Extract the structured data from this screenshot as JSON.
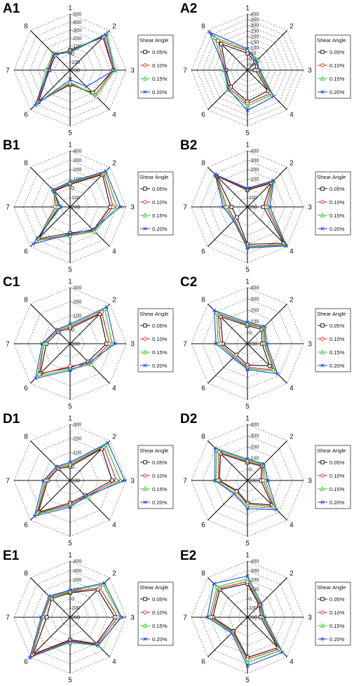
{
  "figure": {
    "legend_title": "Shear Angle",
    "series_names": [
      "0.05%",
      "0.10%",
      "0.15%",
      "0.20%"
    ],
    "series_colors": [
      "#111111",
      "#e52222",
      "#22cc22",
      "#2244ee"
    ],
    "series_markers": [
      "square",
      "circle",
      "triangle",
      "x"
    ]
  },
  "chart_data": [
    {
      "panel": "A1",
      "type": "radar",
      "axes": [
        "1",
        "2",
        "3",
        "4",
        "5",
        "6",
        "7",
        "8"
      ],
      "ticks": [
        "-500",
        "-400",
        "-300",
        "-200",
        "-100",
        "0",
        "100",
        "200"
      ],
      "range": [
        -500,
        200
      ],
      "series": [
        {
          "name": "0.05%",
          "values": [
            -50,
            -380,
            -340,
            -200,
            20,
            -360,
            -60,
            -60
          ]
        },
        {
          "name": "0.10%",
          "values": [
            -40,
            -400,
            -340,
            -240,
            30,
            -380,
            -80,
            -90
          ]
        },
        {
          "name": "0.15%",
          "values": [
            -30,
            -450,
            -360,
            -260,
            50,
            -400,
            -100,
            -100
          ]
        },
        {
          "name": "0.20%",
          "values": [
            -20,
            -430,
            -350,
            -90,
            80,
            -420,
            -70,
            -80
          ]
        }
      ]
    },
    {
      "panel": "A2",
      "type": "radar",
      "axes": [
        "1",
        "2",
        "3",
        "4",
        "5",
        "6",
        "7",
        "8"
      ],
      "ticks": [
        "-400",
        "-350",
        "-300",
        "-250",
        "-200",
        "-150",
        "-100",
        "-50",
        "0",
        "50",
        "100"
      ],
      "range": [
        -400,
        100
      ],
      "series": [
        {
          "name": "0.05%",
          "values": [
            -50,
            0,
            30,
            -160,
            -180,
            -110,
            -90,
            -230
          ]
        },
        {
          "name": "0.10%",
          "values": [
            -70,
            -20,
            10,
            -190,
            -200,
            -130,
            -100,
            -270
          ]
        },
        {
          "name": "0.15%",
          "values": [
            -80,
            -30,
            0,
            -210,
            -220,
            -150,
            -110,
            -310
          ]
        },
        {
          "name": "0.20%",
          "values": [
            -90,
            -10,
            -10,
            -230,
            -260,
            -140,
            -100,
            -380
          ]
        }
      ]
    },
    {
      "panel": "B1",
      "type": "radar",
      "axes": [
        "1",
        "2",
        "3",
        "4",
        "5",
        "6",
        "7",
        "8"
      ],
      "ticks": [
        "-400",
        "-300",
        "-200",
        "-100",
        "0",
        "100",
        "200"
      ],
      "range": [
        -400,
        200
      ],
      "series": [
        {
          "name": "0.05%",
          "values": [
            -40,
            -290,
            -230,
            -150,
            -80,
            -280,
            80,
            -40
          ]
        },
        {
          "name": "0.10%",
          "values": [
            -50,
            -310,
            -260,
            -160,
            -100,
            -300,
            40,
            -50
          ]
        },
        {
          "name": "0.15%",
          "values": [
            -60,
            -330,
            -300,
            -170,
            -110,
            -310,
            60,
            -60
          ]
        },
        {
          "name": "0.20%",
          "values": [
            -70,
            -340,
            -340,
            -140,
            -90,
            -360,
            100,
            -60
          ]
        }
      ]
    },
    {
      "panel": "B2",
      "type": "radar",
      "axes": [
        "1",
        "2",
        "3",
        "4",
        "5",
        "6",
        "7",
        "8"
      ],
      "ticks": [
        "-400",
        "-300",
        "-200",
        "-100",
        "0",
        "100",
        "200"
      ],
      "range": [
        -400,
        200
      ],
      "series": [
        {
          "name": "0.05%",
          "values": [
            20,
            -160,
            30,
            -350,
            -200,
            40,
            30,
            -270
          ]
        },
        {
          "name": "0.10%",
          "values": [
            10,
            -180,
            0,
            -370,
            -220,
            10,
            -20,
            -280
          ]
        },
        {
          "name": "0.15%",
          "values": [
            0,
            -190,
            -20,
            -380,
            -230,
            0,
            -40,
            -290
          ]
        },
        {
          "name": "0.20%",
          "values": [
            0,
            -200,
            -40,
            -390,
            -240,
            -10,
            -60,
            -290
          ]
        }
      ]
    },
    {
      "panel": "C1",
      "type": "radar",
      "axes": [
        "1",
        "2",
        "3",
        "4",
        "5",
        "6",
        "7",
        "8"
      ],
      "ticks": [
        "-300",
        "-200",
        "-100",
        "0",
        "100"
      ],
      "range": [
        -300,
        100
      ],
      "series": [
        {
          "name": "0.05%",
          "values": [
            -10,
            -200,
            -160,
            -80,
            -70,
            -200,
            -70,
            -20
          ]
        },
        {
          "name": "0.10%",
          "values": [
            -20,
            -220,
            -180,
            -100,
            -60,
            -210,
            -90,
            -30
          ]
        },
        {
          "name": "0.15%",
          "values": [
            -30,
            -250,
            -200,
            -110,
            -80,
            -230,
            -90,
            -40
          ]
        },
        {
          "name": "0.20%",
          "values": [
            -40,
            -270,
            -220,
            -90,
            -90,
            -250,
            -100,
            -40
          ]
        }
      ]
    },
    {
      "panel": "C2",
      "type": "radar",
      "axes": [
        "1",
        "2",
        "3",
        "4",
        "5",
        "6",
        "7",
        "8"
      ],
      "ticks": [
        "-400",
        "-300",
        "-200",
        "-100",
        "0",
        "100"
      ],
      "range": [
        -400,
        100
      ],
      "series": [
        {
          "name": "0.05%",
          "values": [
            -60,
            -80,
            -30,
            -180,
            -90,
            -40,
            -120,
            -240
          ]
        },
        {
          "name": "0.10%",
          "values": [
            -70,
            -100,
            -50,
            -230,
            -110,
            -60,
            -140,
            -270
          ]
        },
        {
          "name": "0.15%",
          "values": [
            -80,
            -110,
            -60,
            -250,
            -120,
            -70,
            -160,
            -290
          ]
        },
        {
          "name": "0.20%",
          "values": [
            -90,
            -120,
            -70,
            -280,
            -130,
            -80,
            -180,
            -320
          ]
        }
      ]
    },
    {
      "panel": "D1",
      "type": "radar",
      "axes": [
        "1",
        "2",
        "3",
        "4",
        "5",
        "6",
        "7",
        "8"
      ],
      "ticks": [
        "-300",
        "-200",
        "-100",
        "0",
        "100"
      ],
      "range": [
        -300,
        100
      ],
      "series": [
        {
          "name": "0.05%",
          "values": [
            0,
            -220,
            -200,
            -50,
            -60,
            -220,
            -60,
            -20
          ]
        },
        {
          "name": "0.10%",
          "values": [
            -10,
            -240,
            -230,
            -60,
            -70,
            -230,
            -70,
            -30
          ]
        },
        {
          "name": "0.15%",
          "values": [
            -20,
            -260,
            -260,
            -70,
            -80,
            -240,
            -80,
            -40
          ]
        },
        {
          "name": "0.20%",
          "values": [
            -30,
            -280,
            -290,
            -60,
            -90,
            -260,
            -90,
            -40
          ]
        }
      ]
    },
    {
      "panel": "D2",
      "type": "radar",
      "axes": [
        "1",
        "2",
        "3",
        "4",
        "5",
        "6",
        "7",
        "8"
      ],
      "ticks": [
        "-400",
        "-300",
        "-200",
        "-100",
        "0",
        "100"
      ],
      "range": [
        -400,
        100
      ],
      "series": [
        {
          "name": "0.05%",
          "values": [
            -60,
            -80,
            -20,
            -210,
            -100,
            -30,
            -150,
            -240
          ]
        },
        {
          "name": "0.10%",
          "values": [
            -70,
            -90,
            -40,
            -230,
            -110,
            -40,
            -160,
            -260
          ]
        },
        {
          "name": "0.15%",
          "values": [
            -80,
            -100,
            -60,
            -250,
            -130,
            -60,
            -180,
            -290
          ]
        },
        {
          "name": "0.20%",
          "values": [
            -90,
            -110,
            -80,
            -270,
            -150,
            -70,
            -190,
            -310
          ]
        }
      ]
    },
    {
      "panel": "E1",
      "type": "radar",
      "axes": [
        "1",
        "2",
        "3",
        "4",
        "5",
        "6",
        "7",
        "8"
      ],
      "ticks": [
        "-400",
        "-300",
        "-200",
        "-100",
        "0",
        "100",
        "200"
      ],
      "range": [
        -400,
        200
      ],
      "series": [
        {
          "name": "0.05%",
          "values": [
            -60,
            -220,
            -280,
            -200,
            -40,
            -360,
            -50,
            -80
          ]
        },
        {
          "name": "0.10%",
          "values": [
            -70,
            -250,
            -310,
            -210,
            -50,
            -380,
            -90,
            -100
          ]
        },
        {
          "name": "0.15%",
          "values": [
            -80,
            -300,
            -340,
            -230,
            -70,
            -400,
            -100,
            -110
          ]
        },
        {
          "name": "0.20%",
          "values": [
            -90,
            -320,
            -350,
            -220,
            -60,
            -410,
            -110,
            -120
          ]
        }
      ]
    },
    {
      "panel": "E2",
      "type": "radar",
      "axes": [
        "1",
        "2",
        "3",
        "4",
        "5",
        "6",
        "7",
        "8"
      ],
      "ticks": [
        "-400",
        "-300",
        "-200",
        "-100",
        "0",
        "100",
        "200"
      ],
      "range": [
        -400,
        200
      ],
      "series": [
        {
          "name": "0.05%",
          "values": [
            -160,
            20,
            60,
            -260,
            -230,
            -10,
            -170,
            -220
          ]
        },
        {
          "name": "0.10%",
          "values": [
            -180,
            10,
            40,
            -280,
            -250,
            -20,
            -190,
            -240
          ]
        },
        {
          "name": "0.15%",
          "values": [
            -210,
            0,
            30,
            -300,
            -280,
            -30,
            -210,
            -260
          ]
        },
        {
          "name": "0.20%",
          "values": [
            -240,
            -10,
            20,
            -330,
            -320,
            -40,
            -230,
            -310
          ]
        }
      ]
    }
  ]
}
